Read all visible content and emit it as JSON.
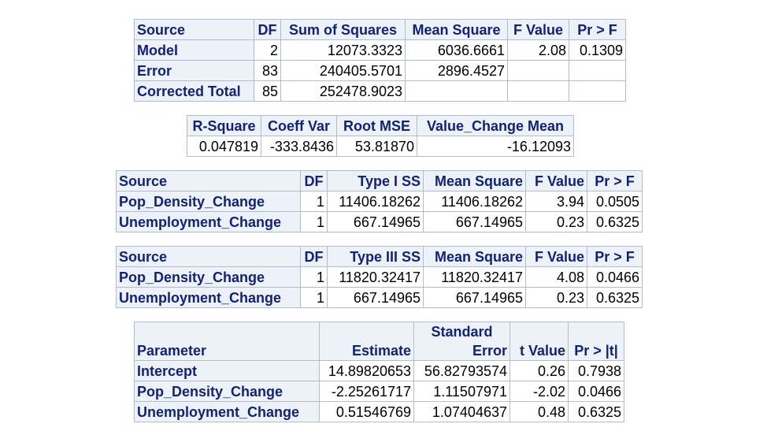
{
  "anova": {
    "headers": [
      "Source",
      "DF",
      "Sum of Squares",
      "Mean Square",
      "F Value",
      "Pr > F"
    ],
    "rows": [
      [
        "Model",
        "2",
        "12073.3323",
        "6036.6661",
        "2.08",
        "0.1309"
      ],
      [
        "Error",
        "83",
        "240405.5701",
        "2896.4527",
        "",
        ""
      ],
      [
        "Corrected Total",
        "85",
        "252478.9023",
        "",
        "",
        ""
      ]
    ]
  },
  "fit": {
    "headers": [
      "R-Square",
      "Coeff Var",
      "Root MSE",
      "Value_Change Mean"
    ],
    "values": [
      "0.047819",
      "-333.8436",
      "53.81870",
      "-16.12093"
    ]
  },
  "type1": {
    "headers": [
      "Source",
      "DF",
      "Type I SS",
      "Mean Square",
      "F Value",
      "Pr > F"
    ],
    "rows": [
      [
        "Pop_Density_Change",
        "1",
        "11406.18262",
        "11406.18262",
        "3.94",
        "0.0505"
      ],
      [
        "Unemployment_Change",
        "1",
        "667.14965",
        "667.14965",
        "0.23",
        "0.6325"
      ]
    ]
  },
  "type3": {
    "headers": [
      "Source",
      "DF",
      "Type III SS",
      "Mean Square",
      "F Value",
      "Pr > F"
    ],
    "rows": [
      [
        "Pop_Density_Change",
        "1",
        "11820.32417",
        "11820.32417",
        "4.08",
        "0.0466"
      ],
      [
        "Unemployment_Change",
        "1",
        "667.14965",
        "667.14965",
        "0.23",
        "0.6325"
      ]
    ]
  },
  "params": {
    "headers": [
      "Parameter",
      "Estimate",
      "Standard",
      "Error",
      "t Value",
      "Pr > |t|"
    ],
    "rows": [
      [
        "Intercept",
        "14.89820653",
        "56.82793574",
        "0.26",
        "0.7938"
      ],
      [
        "Pop_Density_Change",
        "-2.25261717",
        "1.11507971",
        "-2.02",
        "0.0466"
      ],
      [
        "Unemployment_Change",
        "0.51546769",
        "1.07404637",
        "0.48",
        "0.6325"
      ]
    ]
  },
  "colors": {
    "header_bg": "#edf2f9",
    "header_text": "#112277",
    "border": "#b4bccb"
  }
}
